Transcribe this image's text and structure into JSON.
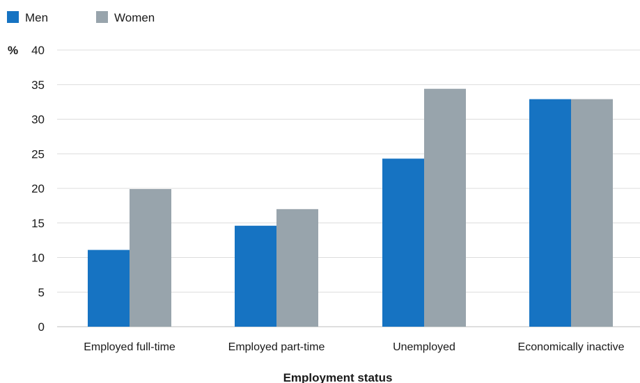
{
  "chart_data": {
    "type": "bar",
    "title": "",
    "xlabel": "Employment status",
    "ylabel": "%",
    "ylim": [
      0,
      40
    ],
    "yticks": [
      0,
      5,
      10,
      15,
      20,
      25,
      30,
      35,
      40
    ],
    "grid": true,
    "legend_position": "top-left",
    "categories": [
      "Employed full-time",
      "Employed part-time",
      "Unemployed",
      "Economically inactive"
    ],
    "series": [
      {
        "name": "Men",
        "color": "#1673c2",
        "values": [
          11.1,
          14.6,
          24.3,
          32.9
        ]
      },
      {
        "name": "Women",
        "color": "#98a4ac",
        "values": [
          19.9,
          17.0,
          34.4,
          32.9
        ]
      }
    ]
  }
}
